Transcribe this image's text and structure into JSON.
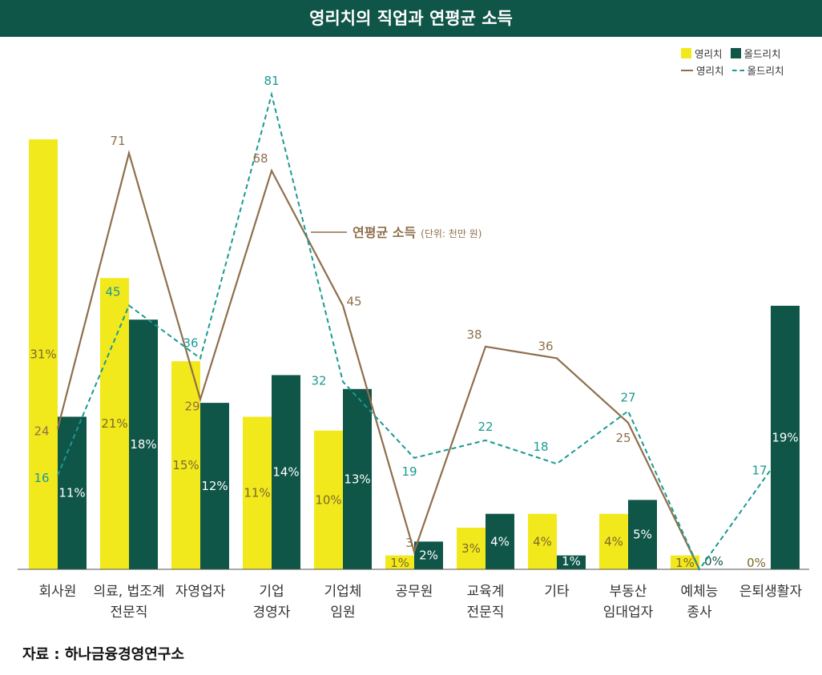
{
  "title": "영리치의 직업과 연평균 소득",
  "source": "자료 : 하나금융경영연구소",
  "legend": {
    "bar1": "영리치",
    "bar2": "올드리치",
    "line1": "영리치",
    "line2": "올드리치"
  },
  "annotation": {
    "label": "연평균 소득",
    "unit": "(단위: 천만 원)"
  },
  "colors": {
    "young_bar": "#f2e91c",
    "old_bar": "#0f5548",
    "young_line": "#8f6f4c",
    "old_line": "#1a9a93",
    "title_bg": "#0f5548"
  },
  "chart_data": {
    "type": "bar",
    "categories": [
      [
        "회사원"
      ],
      [
        "의료, 법조계",
        "전문직"
      ],
      [
        "자영업자"
      ],
      [
        "기업",
        "경영자"
      ],
      [
        "기업체",
        "임원"
      ],
      [
        "공무원"
      ],
      [
        "교육계",
        "전문직"
      ],
      [
        "기타"
      ],
      [
        "부동산",
        "임대업자"
      ],
      [
        "예체능",
        "종사"
      ],
      [
        "은퇴생활자"
      ]
    ],
    "series": [
      {
        "name": "영리치",
        "kind": "bar",
        "values": [
          31,
          21,
          15,
          11,
          10,
          1,
          3,
          4,
          4,
          1,
          0
        ],
        "labels": [
          "31%",
          "21%",
          "15%",
          "11%",
          "10%",
          "1%",
          "3%",
          "4%",
          "4%",
          "1%",
          "0%"
        ]
      },
      {
        "name": "올드리치",
        "kind": "bar",
        "values": [
          11,
          18,
          12,
          14,
          13,
          2,
          4,
          1,
          5,
          0,
          19
        ],
        "labels": [
          "11%",
          "18%",
          "12%",
          "14%",
          "13%",
          "2%",
          "4%",
          "1%",
          "5%",
          "0%",
          "19%"
        ]
      },
      {
        "name": "영리치",
        "kind": "line",
        "values": [
          24,
          71,
          29,
          68,
          45,
          3,
          38,
          36,
          25,
          null,
          null
        ]
      },
      {
        "name": "올드리치",
        "kind": "line",
        "style": "dashed",
        "values": [
          16,
          45,
          36,
          81,
          32,
          19,
          22,
          18,
          27,
          null,
          17
        ]
      }
    ],
    "line_end": {
      "x_category": 9,
      "value": 0
    },
    "bar_ylim": [
      0,
      31
    ],
    "line_ylim": [
      0,
      81
    ],
    "ylabel": "연평균 소득 (단위: 천만 원)",
    "grid": false,
    "legend_position": "top-right"
  }
}
